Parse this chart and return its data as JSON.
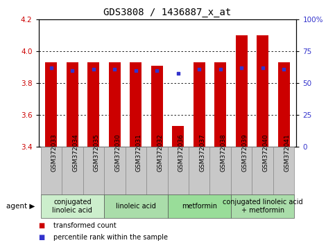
{
  "title": "GDS3808 / 1436887_x_at",
  "samples": [
    "GSM372033",
    "GSM372034",
    "GSM372035",
    "GSM372030",
    "GSM372031",
    "GSM372032",
    "GSM372036",
    "GSM372037",
    "GSM372038",
    "GSM372039",
    "GSM372040",
    "GSM372041"
  ],
  "bar_values": [
    3.93,
    3.93,
    3.93,
    3.93,
    3.93,
    3.91,
    3.53,
    3.93,
    3.93,
    4.1,
    4.1,
    3.93
  ],
  "bar_bottom": 3.4,
  "percentile_values": [
    62,
    60,
    61,
    61,
    60,
    60,
    58,
    61,
    61,
    62,
    62,
    61
  ],
  "ylim_left": [
    3.4,
    4.2
  ],
  "ylim_right": [
    0,
    100
  ],
  "yticks_left": [
    3.4,
    3.6,
    3.8,
    4.0,
    4.2
  ],
  "yticks_right": [
    0,
    25,
    50,
    75,
    100
  ],
  "ytick_labels_right": [
    "0",
    "25",
    "50",
    "75",
    "100%"
  ],
  "bar_color": "#CC0000",
  "dot_color": "#3333CC",
  "plot_bg_color": "#FFFFFF",
  "agent_groups": [
    {
      "label": "conjugated\nlinoleic acid",
      "start": 0,
      "end": 3,
      "color": "#CCEECC"
    },
    {
      "label": "linoleic acid",
      "start": 3,
      "end": 6,
      "color": "#AADDAA"
    },
    {
      "label": "metformin",
      "start": 6,
      "end": 9,
      "color": "#99DD99"
    },
    {
      "label": "conjugated linoleic acid\n+ metformin",
      "start": 9,
      "end": 12,
      "color": "#AADDAA"
    }
  ],
  "legend_items": [
    {
      "color": "#CC0000",
      "label": "transformed count"
    },
    {
      "color": "#3333CC",
      "label": "percentile rank within the sample"
    }
  ],
  "bar_width": 0.55,
  "tick_label_color_left": "#CC0000",
  "tick_label_color_right": "#3333CC",
  "title_fontsize": 10,
  "axis_fontsize": 7.5,
  "sample_fontsize": 6.5,
  "group_fontsize": 7,
  "legend_fontsize": 7,
  "cell_color": "#C8C8C8",
  "cell_edge_color": "#888888"
}
